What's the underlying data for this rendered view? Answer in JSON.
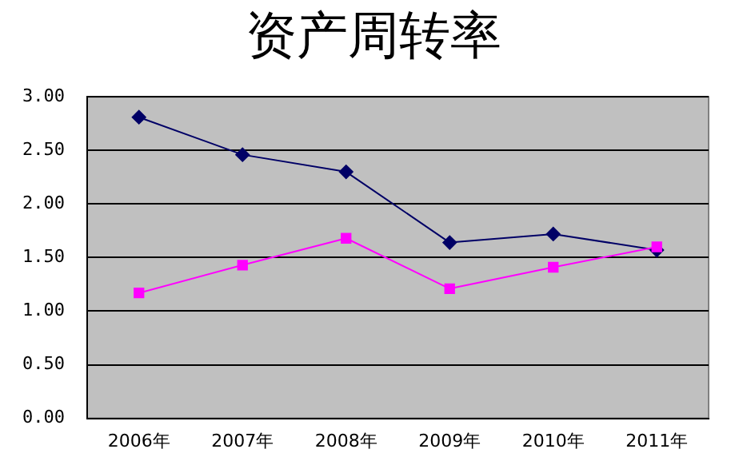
{
  "chart_data": {
    "type": "line",
    "title": "资产周转率",
    "categories": [
      "2006年",
      "2007年",
      "2008年",
      "2009年",
      "2010年",
      "2011年"
    ],
    "series": [
      {
        "color": "#000066",
        "marker": "diamond",
        "values": [
          2.81,
          2.46,
          2.3,
          1.64,
          1.72,
          1.57
        ]
      },
      {
        "color": "#ff00ff",
        "marker": "square",
        "values": [
          1.17,
          1.43,
          1.68,
          1.21,
          1.41,
          1.6
        ]
      }
    ],
    "ylim": [
      0,
      3
    ],
    "yticks": [
      {
        "value": 0,
        "label": "0.00"
      },
      {
        "value": 0.5,
        "label": "0.50"
      },
      {
        "value": 1,
        "label": "1.00"
      },
      {
        "value": 1.5,
        "label": "1.50"
      },
      {
        "value": 2,
        "label": "2.00"
      },
      {
        "value": 2.5,
        "label": "2.50"
      },
      {
        "value": 3,
        "label": "3.00"
      }
    ],
    "grid": "y",
    "legend": false,
    "line_style": "solid"
  }
}
